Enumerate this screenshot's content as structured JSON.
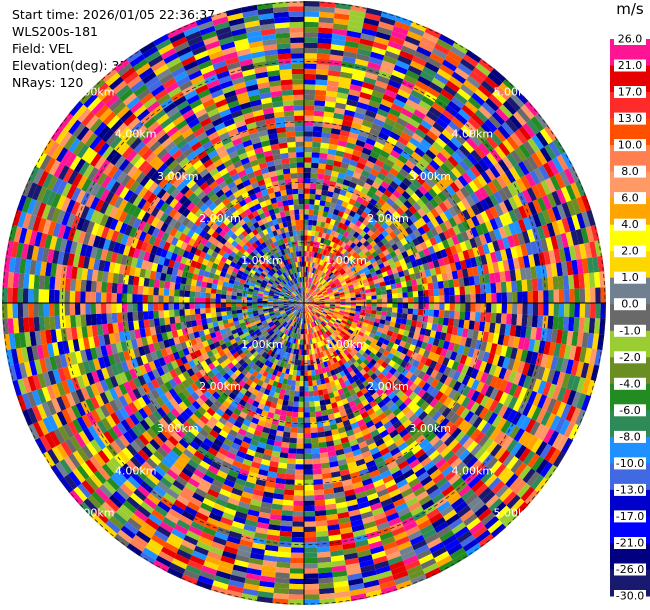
{
  "info": {
    "start_time": "Start time: 2026/01/05 22:36:37",
    "instrument": "WLS200s-181",
    "field": "Field: VEL",
    "elevation": "Elevation(deg): 35.00",
    "nrays": "NRays: 120"
  },
  "chart_data": {
    "type": "heatmap",
    "projection": "polar",
    "field": "VEL",
    "n_rays": 120,
    "max_range_km": 5.0,
    "range_rings_km": [
      1,
      2,
      3,
      4,
      5
    ],
    "ring_labels": [
      "1.00km",
      "2.00km",
      "3.00km",
      "4.00km",
      "5.00km"
    ],
    "colorbar": {
      "unit": "m/s",
      "ticks": [
        "26.0",
        "21.0",
        "17.0",
        "13.0",
        "10.0",
        "8.0",
        "6.0",
        "4.0",
        "2.0",
        "1.0",
        "0.0",
        "-1.0",
        "-2.0",
        "-4.0",
        "-6.0",
        "-8.0",
        "-10.0",
        "-13.0",
        "-17.0",
        "-21.0",
        "-26.0",
        "-30.0"
      ],
      "colors": [
        "#ff1493",
        "#e60000",
        "#ff2a2a",
        "#ff5000",
        "#ff7f50",
        "#ff9966",
        "#ffa500",
        "#ffff00",
        "#ffd700",
        "#708090",
        "#696969",
        "#9acd32",
        "#6b8e23",
        "#228b22",
        "#2e8b57",
        "#1e90ff",
        "#4169e1",
        "#0000cd",
        "#0000ff",
        "#000080",
        "#191970"
      ]
    }
  }
}
